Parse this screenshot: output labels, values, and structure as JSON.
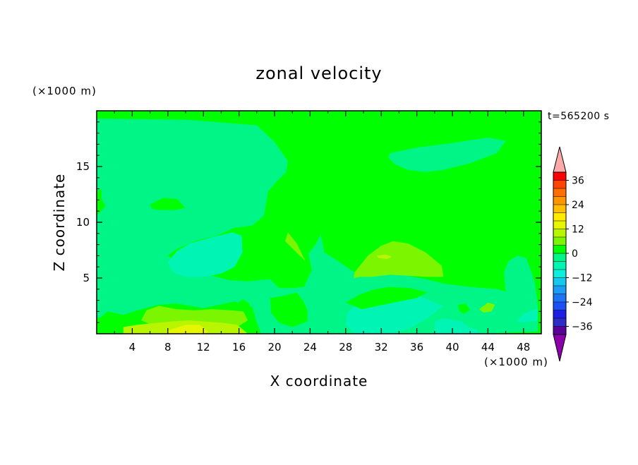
{
  "chart_data": {
    "type": "heatmap",
    "title": "zonal velocity",
    "xlabel": "X coordinate",
    "ylabel": "Z coordinate",
    "x_unit": "(×1000 m)",
    "y_unit": "(×1000 m)",
    "time_label": "t=565200 s",
    "xlim": [
      0,
      50
    ],
    "ylim": [
      0,
      20
    ],
    "x_ticks": [
      "4",
      "8",
      "12",
      "16",
      "20",
      "24",
      "28",
      "32",
      "36",
      "40",
      "44",
      "48"
    ],
    "y_ticks": [
      "5",
      "10",
      "15"
    ],
    "background_level": 0,
    "colorbar": {
      "levels": [
        -40,
        -36,
        -32,
        -28,
        -24,
        -20,
        -16,
        -12,
        -8,
        -4,
        0,
        4,
        8,
        12,
        16,
        20,
        24,
        28,
        32,
        36,
        40
      ],
      "colors": [
        "#5a009b",
        "#2d2dc6",
        "#1e1ee6",
        "#1c4ff5",
        "#1c74f5",
        "#1c9cf5",
        "#14c8ee",
        "#0af0dc",
        "#00f5b4",
        "#00f587",
        "#00ff00",
        "#7cf500",
        "#baf500",
        "#e6f500",
        "#ffea00",
        "#ffbe00",
        "#ff9600",
        "#ff6e00",
        "#ff4600",
        "#ff0000"
      ],
      "over_color": "#ffaaaa",
      "under_color": "#8c00aa",
      "tick_labels": [
        "36",
        "24",
        "12",
        "0",
        "−12",
        "−24",
        "−36"
      ]
    },
    "regions": [
      {
        "level": -4,
        "points": [
          [
            0,
            18.7
          ],
          [
            4,
            18.3
          ],
          [
            8,
            17.5
          ],
          [
            10.5,
            16.5
          ],
          [
            9,
            15
          ],
          [
            5,
            14.5
          ],
          [
            2,
            13.5
          ],
          [
            0,
            12.8
          ]
        ]
      },
      {
        "level": -4,
        "points": [
          [
            0,
            19.3
          ],
          [
            10,
            19.2
          ],
          [
            18,
            18.7
          ],
          [
            20,
            17.2
          ],
          [
            21.5,
            15.5
          ],
          [
            21.3,
            14.5
          ],
          [
            20.3,
            13.7
          ],
          [
            19.3,
            12.8
          ],
          [
            19,
            11.5
          ],
          [
            18.8,
            10.6
          ],
          [
            17.5,
            9.7
          ],
          [
            15.5,
            9.5
          ],
          [
            13.5,
            8.8
          ],
          [
            11,
            8.3
          ],
          [
            9,
            7.6
          ],
          [
            8,
            7
          ],
          [
            9,
            6.5
          ],
          [
            11,
            5.9
          ],
          [
            13,
            5.2
          ],
          [
            15,
            4.8
          ],
          [
            17,
            4.7
          ],
          [
            19.5,
            4.9
          ],
          [
            20.5,
            4.1
          ],
          [
            22,
            4.1
          ],
          [
            23.3,
            4.2
          ],
          [
            24.2,
            5.7
          ],
          [
            23.8,
            7.2
          ],
          [
            24.6,
            8
          ],
          [
            25.2,
            8.9
          ],
          [
            25.6,
            7.3
          ],
          [
            26.8,
            6.7
          ],
          [
            29,
            5.5
          ],
          [
            30,
            5.2
          ],
          [
            31,
            5.4
          ],
          [
            33,
            5.6
          ],
          [
            35,
            5.2
          ],
          [
            37,
            4.9
          ],
          [
            39,
            4.5
          ],
          [
            42,
            4.2
          ],
          [
            45,
            4
          ],
          [
            46,
            3.8
          ],
          [
            45.8,
            5.5
          ],
          [
            46.3,
            6.5
          ],
          [
            47.3,
            7
          ],
          [
            48.3,
            6.8
          ],
          [
            48.9,
            5.5
          ],
          [
            49.3,
            4.5
          ],
          [
            49.6,
            2.5
          ],
          [
            49.6,
            0.2
          ],
          [
            43,
            0
          ],
          [
            35,
            0
          ],
          [
            25,
            0
          ],
          [
            18.5,
            0
          ],
          [
            18,
            1
          ],
          [
            17.5,
            2.4
          ],
          [
            15.5,
            2.9
          ],
          [
            12,
            2.3
          ],
          [
            9,
            2.7
          ],
          [
            7,
            2.6
          ],
          [
            5,
            2.2
          ],
          [
            3,
            1.7
          ],
          [
            1.2,
            2
          ],
          [
            0.5,
            1.5
          ],
          [
            0,
            1.4
          ],
          [
            0,
            10.6
          ],
          [
            0.5,
            11
          ],
          [
            1,
            11.5
          ],
          [
            0.6,
            12
          ]
        ]
      },
      {
        "level": -4,
        "points": [
          [
            33,
            16.2
          ],
          [
            36,
            16.7
          ],
          [
            40,
            17.1
          ],
          [
            44,
            17.6
          ],
          [
            46,
            17.3
          ],
          [
            45,
            16.2
          ],
          [
            42,
            15.3
          ],
          [
            39,
            14.7
          ],
          [
            37,
            14.5
          ],
          [
            35,
            14.7
          ],
          [
            33.5,
            15.2
          ],
          [
            32.8,
            15.8
          ]
        ]
      },
      {
        "level": -4,
        "points": [
          [
            0,
            10
          ],
          [
            1,
            9.3
          ],
          [
            1.4,
            8.1
          ],
          [
            1,
            6.9
          ],
          [
            0.2,
            6.3
          ],
          [
            0,
            6
          ]
        ]
      },
      {
        "level": -8,
        "points": [
          [
            8,
            6.4
          ],
          [
            9,
            7.4
          ],
          [
            10.5,
            8.1
          ],
          [
            13.2,
            8.7
          ],
          [
            15.3,
            9.1
          ],
          [
            16.3,
            8.8
          ],
          [
            16.4,
            7.3
          ],
          [
            15.5,
            6
          ],
          [
            14,
            5.4
          ],
          [
            12,
            5.1
          ],
          [
            10,
            5.1
          ],
          [
            8.6,
            5.5
          ]
        ]
      },
      {
        "level": -8,
        "points": [
          [
            29,
            2.5
          ],
          [
            31,
            2.8
          ],
          [
            32.5,
            3.3
          ],
          [
            34,
            3.3
          ],
          [
            36,
            3.5
          ],
          [
            38,
            2.8
          ],
          [
            39,
            2.5
          ],
          [
            37,
            1.3
          ],
          [
            35,
            0.4
          ],
          [
            33,
            0
          ],
          [
            29,
            0
          ],
          [
            28,
            0.8
          ],
          [
            28.2,
            1.9
          ]
        ]
      },
      {
        "level": -8,
        "points": [
          [
            38,
            1.1
          ],
          [
            39,
            1.4
          ],
          [
            41,
            1.1
          ],
          [
            42,
            0.5
          ],
          [
            42.8,
            0.4
          ],
          [
            42.8,
            0
          ],
          [
            38,
            0
          ]
        ]
      },
      {
        "level": -8,
        "points": [
          [
            47.2,
            1.1
          ],
          [
            48,
            1.8
          ],
          [
            49,
            2.1
          ],
          [
            49.6,
            2.3
          ],
          [
            49.6,
            1.2
          ],
          [
            48,
            1
          ]
        ]
      },
      {
        "level": 0,
        "points": [
          [
            6,
            11.6
          ],
          [
            7.5,
            12.2
          ],
          [
            9,
            12.1
          ],
          [
            10,
            11.3
          ],
          [
            8.8,
            11.1
          ],
          [
            7,
            11.1
          ],
          [
            6.2,
            11.2
          ]
        ]
      },
      {
        "level": 0,
        "points": [
          [
            28,
            2.8
          ],
          [
            29.5,
            3.5
          ],
          [
            31.3,
            4
          ],
          [
            33,
            4.2
          ],
          [
            35.3,
            4.1
          ],
          [
            37.2,
            3.7
          ],
          [
            36,
            3.2
          ],
          [
            34,
            2.9
          ],
          [
            31.6,
            2.5
          ],
          [
            29.8,
            2.2
          ]
        ]
      },
      {
        "level": 0,
        "points": [
          [
            19.5,
            3.2
          ],
          [
            21,
            3.4
          ],
          [
            22.5,
            3.7
          ],
          [
            23.2,
            3
          ],
          [
            23.7,
            2.1
          ],
          [
            23.7,
            1.1
          ],
          [
            22,
            0.6
          ],
          [
            20.5,
            1
          ],
          [
            19.6,
            1.9
          ]
        ]
      },
      {
        "level": 0,
        "points": [
          [
            40.6,
            2.6
          ],
          [
            41.5,
            2.7
          ],
          [
            42,
            2.1
          ],
          [
            41.3,
            1.8
          ],
          [
            40.8,
            2
          ]
        ]
      },
      {
        "level": 0,
        "points": [
          [
            15.5,
            2.6
          ],
          [
            16.5,
            3.1
          ],
          [
            17.2,
            2.7
          ],
          [
            17.2,
            1.9
          ],
          [
            16,
            1.9
          ]
        ]
      },
      {
        "level": 4,
        "points": [
          [
            29,
            5.5
          ],
          [
            30.5,
            7
          ],
          [
            32,
            7.9
          ],
          [
            33.3,
            8.3
          ],
          [
            35,
            8.1
          ],
          [
            37,
            7.3
          ],
          [
            38.8,
            6.1
          ],
          [
            39,
            5.1
          ],
          [
            37,
            5.1
          ],
          [
            35,
            5.2
          ],
          [
            33,
            5.3
          ],
          [
            31,
            5.1
          ],
          [
            29.6,
            5.1
          ],
          [
            28.9,
            5
          ]
        ]
      },
      {
        "level": 4,
        "points": [
          [
            21.5,
            9.1
          ],
          [
            22.5,
            8.1
          ],
          [
            23.3,
            6.8
          ],
          [
            23.5,
            6.5
          ],
          [
            22.2,
            7.5
          ],
          [
            21.2,
            8.3
          ]
        ]
      },
      {
        "level": 4,
        "points": [
          [
            5,
            1.2
          ],
          [
            5.6,
            2.1
          ],
          [
            7,
            2.5
          ],
          [
            9,
            2.2
          ],
          [
            11,
            2.1
          ],
          [
            13,
            2.2
          ],
          [
            15,
            2.1
          ],
          [
            16.5,
            2
          ],
          [
            17,
            1.2
          ],
          [
            16,
            0.7
          ],
          [
            14,
            0.5
          ],
          [
            12,
            0.7
          ],
          [
            10,
            0.6
          ],
          [
            8,
            0.7
          ],
          [
            6.2,
            0.8
          ]
        ]
      },
      {
        "level": 4,
        "points": [
          [
            43,
            2.2
          ],
          [
            44,
            2.8
          ],
          [
            44.8,
            2.6
          ],
          [
            44.4,
            2
          ],
          [
            43.5,
            1.9
          ]
        ]
      },
      {
        "level": 8,
        "points": [
          [
            31.5,
            7
          ],
          [
            32.5,
            7.1
          ],
          [
            33.2,
            6.9
          ],
          [
            32.6,
            6.7
          ],
          [
            31.7,
            6.8
          ]
        ]
      },
      {
        "level": 8,
        "points": [
          [
            3,
            0.6
          ],
          [
            4.5,
            0.8
          ],
          [
            7,
            1
          ],
          [
            8.5,
            1.1
          ],
          [
            10.4,
            1.2
          ],
          [
            12,
            1.1
          ],
          [
            14,
            1
          ],
          [
            15.8,
            0.8
          ],
          [
            17,
            0
          ],
          [
            3,
            0
          ]
        ]
      },
      {
        "level": 12,
        "points": [
          [
            8,
            0.3
          ],
          [
            10,
            0.8
          ],
          [
            11.6,
            0.8
          ],
          [
            12.5,
            0.2
          ],
          [
            12.2,
            0
          ],
          [
            8,
            0
          ]
        ]
      }
    ]
  }
}
